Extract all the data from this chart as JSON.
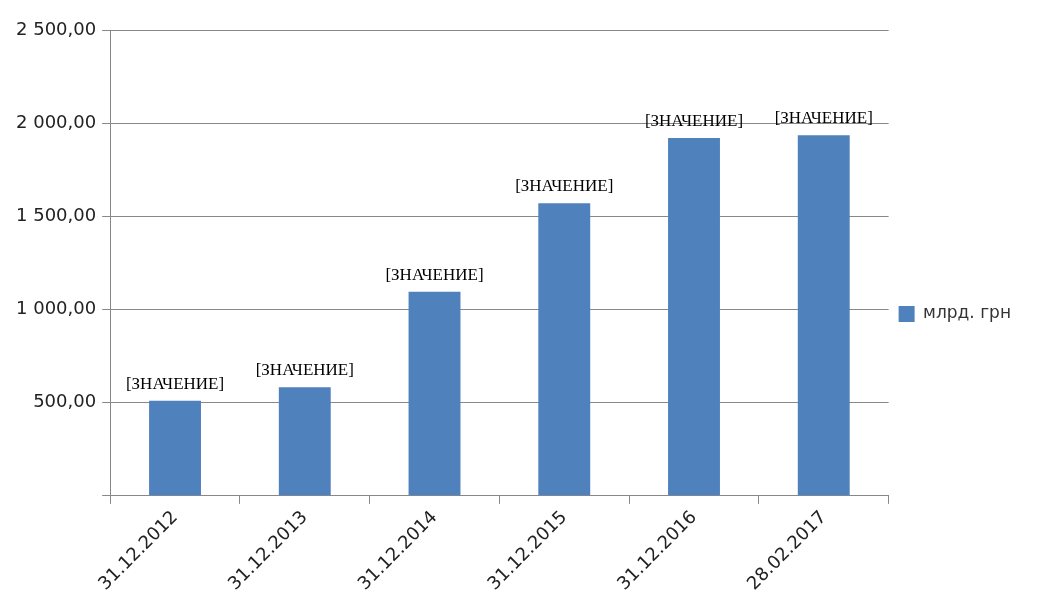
{
  "chart_data": {
    "type": "bar",
    "categories": [
      "31.12.2012",
      "31.12.2013",
      "31.12.2014",
      "31.12.2015",
      "31.12.2016",
      "28.02.2017"
    ],
    "series": [
      {
        "name": "млрд. грн",
        "color": "#4f81bd",
        "values": [
          510,
          583,
          1095,
          1570,
          1920,
          1935
        ]
      }
    ],
    "value_labels": [
      "[ЗНАЧЕНИЕ]",
      "[ЗНАЧЕНИЕ]",
      "[ЗНАЧЕНИЕ]",
      "[ЗНАЧЕНИЕ]",
      "[ЗНАЧЕНИЕ]",
      "[ЗНАЧЕНИЕ]"
    ],
    "ylim": [
      0,
      2500
    ],
    "yticks": [
      {
        "value": 0,
        "label": null
      },
      {
        "value": 500,
        "label": "500,00"
      },
      {
        "value": 1000,
        "label": "1 000,00"
      },
      {
        "value": 1500,
        "label": "1 500,00"
      },
      {
        "value": 2000,
        "label": "2 000,00"
      },
      {
        "value": 2500,
        "label": "2 500,00"
      }
    ],
    "grid": "y",
    "legend": "right"
  }
}
